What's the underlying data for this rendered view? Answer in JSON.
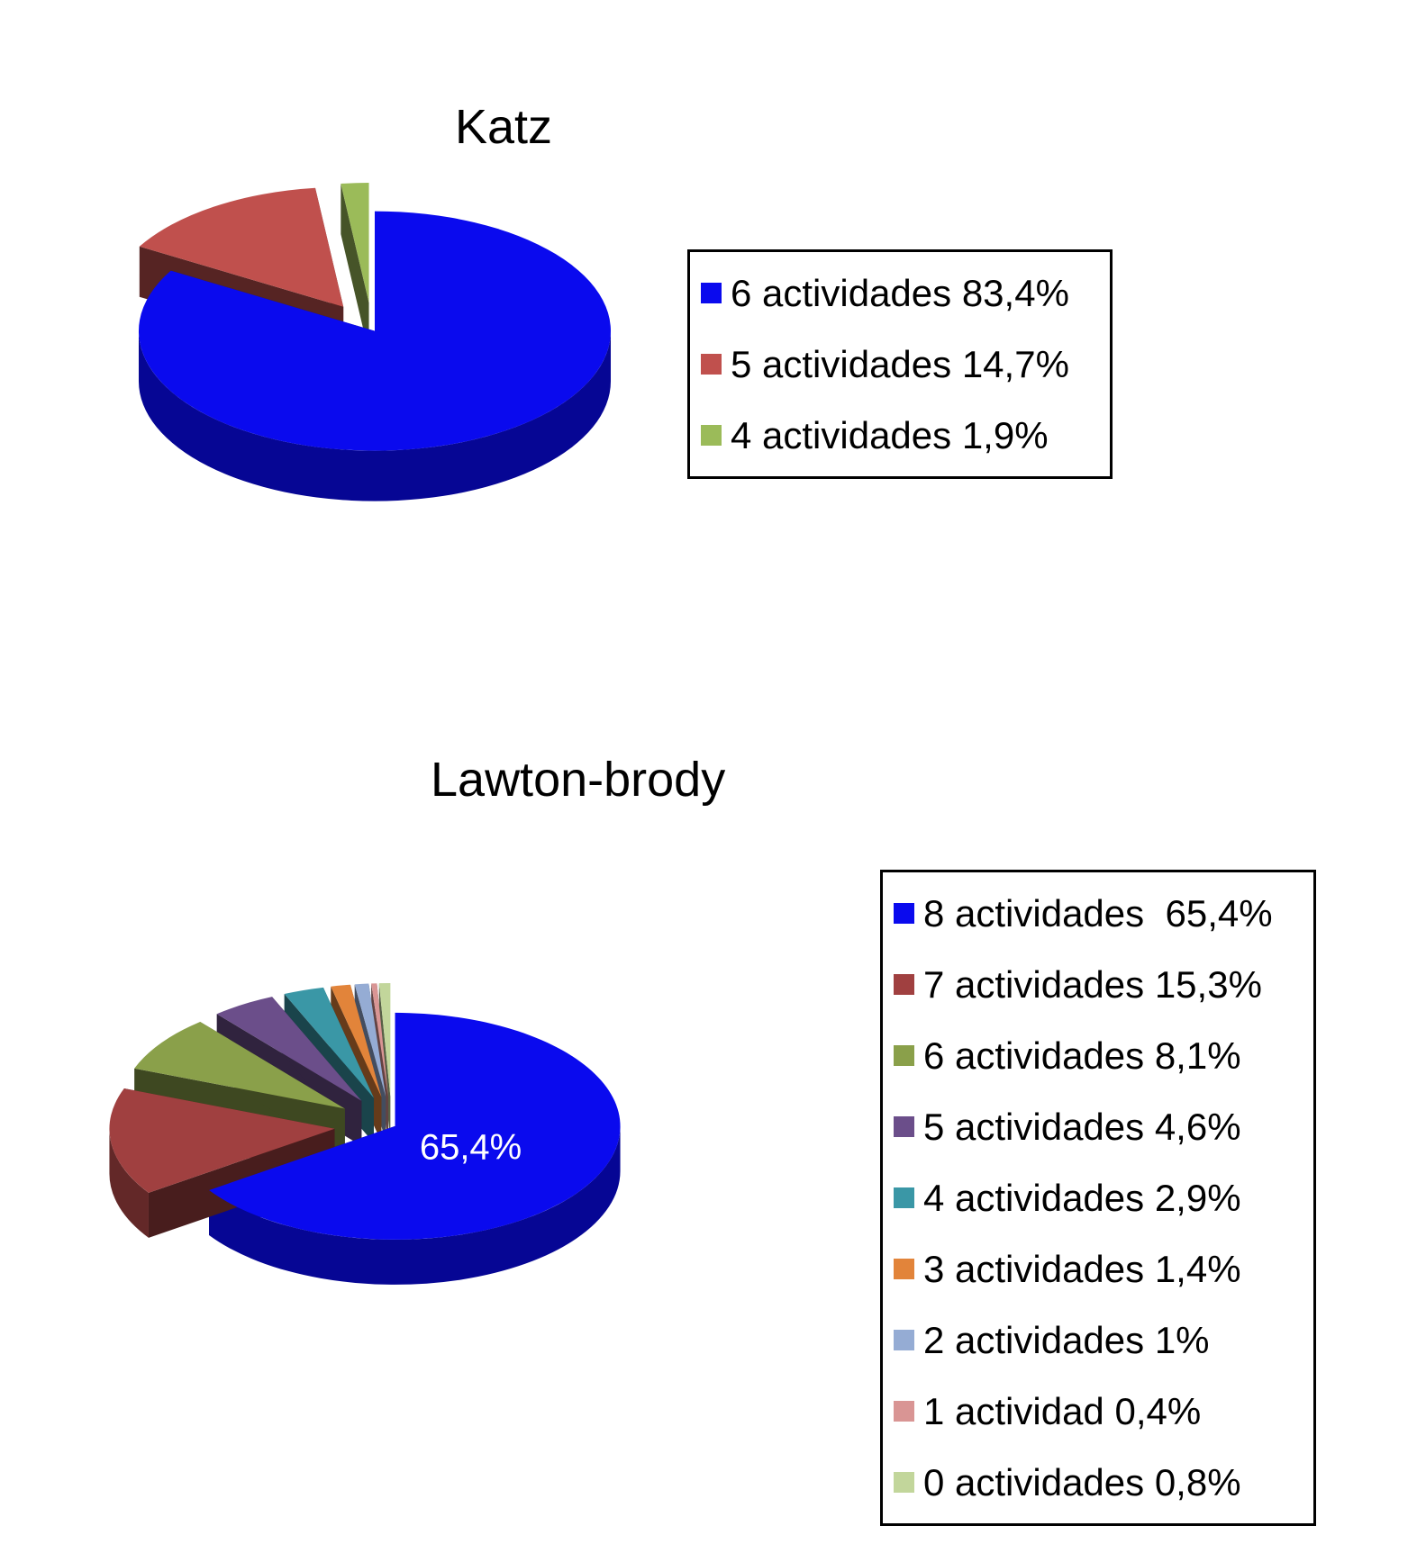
{
  "chart_data": [
    {
      "type": "pie",
      "title": "Katz",
      "categories": [
        "6 actividades",
        "5 actividades",
        "4 actividades"
      ],
      "values": [
        83.4,
        14.7,
        1.9
      ],
      "colors": [
        "#0a0aee",
        "#c0504d",
        "#9bbb59"
      ],
      "legend": [
        "6 actividades 83,4%",
        "5 actividades 14,7%",
        "4 actividades 1,9%"
      ],
      "data_labels": [],
      "legend_position": "right",
      "style": "3d-exploded"
    },
    {
      "type": "pie",
      "title": "Lawton-brody",
      "categories": [
        "8 actividades",
        "7 actividades",
        "6 actividades",
        "5 actividades",
        "4 actividades",
        "3 actividades",
        "2 actividades",
        "1 actividad",
        "0 actividades"
      ],
      "values": [
        65.4,
        15.3,
        8.1,
        4.6,
        2.9,
        1.4,
        1.0,
        0.4,
        0.8
      ],
      "colors": [
        "#0a0aee",
        "#a04040",
        "#8aa04a",
        "#6b4e8a",
        "#3a97a6",
        "#e2843a",
        "#95acd4",
        "#d99594",
        "#c2d69b"
      ],
      "legend": [
        "8 actividades  65,4%",
        "7 actividades 15,3%",
        "6 actividades 8,1%",
        "5 actividades 4,6%",
        "4 actividades 2,9%",
        "3 actividades 1,4%",
        "2 actividades 1%",
        "1 actividad 0,4%",
        "0 actividades 0,8%"
      ],
      "data_labels": [
        "65,4%",
        "",
        "",
        "",
        "",
        "",
        "",
        "",
        ""
      ],
      "legend_position": "right",
      "style": "3d-exploded"
    }
  ]
}
